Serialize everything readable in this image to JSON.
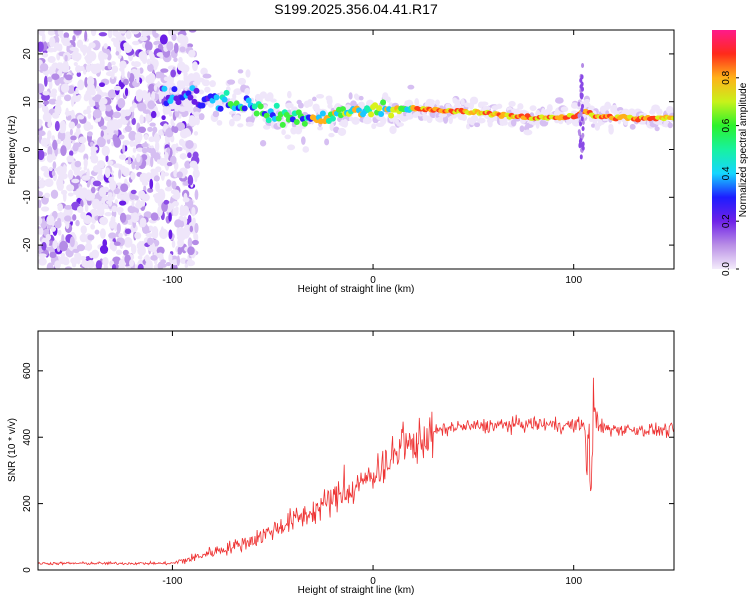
{
  "title": "S199.2025.356.04.41.R17",
  "colors": {
    "snr_line": "#ee3333",
    "frame": "#000000",
    "background": "#ffffff"
  },
  "chart_data": [
    {
      "type": "heatmap",
      "name": "spectrogram",
      "xlabel": "Height of straight line (km)",
      "ylabel": "Frequency (Hz)",
      "xlim": [
        -167,
        150
      ],
      "ylim": [
        -25,
        25
      ],
      "xticks": [
        -100,
        0,
        100
      ],
      "yticks": [
        -20,
        -10,
        0,
        10,
        20
      ],
      "grid": false,
      "colorbar": {
        "label": "Normalized spectral amplitude",
        "range": [
          0,
          1
        ],
        "ticks": [
          "0.0",
          "0.2",
          "0.4",
          "0.6",
          "0.8"
        ],
        "colormap": "rainbow (white-violet to red)"
      },
      "dominant_frequency_track": {
        "x": [
          -100,
          -90,
          -80,
          -70,
          -60,
          -50,
          -40,
          -30,
          -20,
          -10,
          0,
          10,
          20,
          40,
          60,
          80,
          100,
          105,
          110,
          130,
          150
        ],
        "frequency": [
          11,
          11,
          10,
          9.5,
          9,
          7.5,
          6.5,
          6.5,
          7,
          8,
          8.5,
          8.5,
          8.5,
          8,
          7.5,
          6.5,
          7,
          8,
          7,
          6.5,
          6.5
        ]
      }
    },
    {
      "type": "line",
      "name": "snr",
      "xlabel": "Height of straight line (km)",
      "ylabel": "SNR (10 * v/v)",
      "xlim": [
        -167,
        150
      ],
      "ylim": [
        0,
        720
      ],
      "xticks": [
        -100,
        0,
        100
      ],
      "yticks": [
        0,
        200,
        400,
        600
      ],
      "grid": false,
      "trend": {
        "x": [
          -167,
          -100,
          -90,
          -80,
          -70,
          -60,
          -50,
          -40,
          -30,
          -20,
          -10,
          0,
          10,
          20,
          30,
          40,
          60,
          80,
          100,
          105,
          108,
          110,
          112,
          120,
          150
        ],
        "y": [
          20,
          20,
          35,
          55,
          70,
          90,
          120,
          150,
          175,
          215,
          240,
          290,
          340,
          380,
          415,
          430,
          435,
          440,
          435,
          440,
          300,
          420,
          430,
          425,
          420
        ]
      }
    }
  ]
}
